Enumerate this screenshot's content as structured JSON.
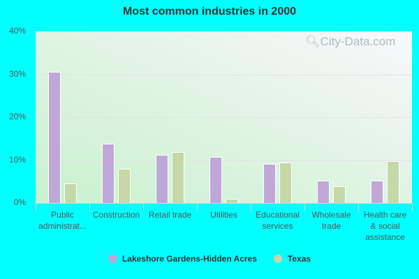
{
  "title": "Most common industries in 2000",
  "watermark": "City-Data.com",
  "colors": {
    "series1": "#bfa8d8",
    "series2": "#c4d8a8",
    "background": "#00ffff"
  },
  "y_ticks": [
    "40%",
    "30%",
    "20%",
    "10%",
    "0%"
  ],
  "legend": [
    {
      "label": "Lakeshore Gardens-Hidden Acres",
      "color": "#bfa8d8"
    },
    {
      "label": "Texas",
      "color": "#c4d8a8"
    }
  ],
  "x_labels": [
    "Public\nadministrat...",
    "Construction",
    "Retail trade",
    "Utilities",
    "Educational\nservices",
    "Wholesale\ntrade",
    "Health care\n& social\nassistance"
  ],
  "chart_data": {
    "type": "bar",
    "title": "Most common industries in 2000",
    "xlabel": "",
    "ylabel": "",
    "ylim": [
      0,
      40
    ],
    "y_ticks": [
      0,
      10,
      20,
      30,
      40
    ],
    "y_tick_format": "%",
    "grid": true,
    "legend_position": "bottom",
    "categories": [
      "Public administrat...",
      "Construction",
      "Retail trade",
      "Utilities",
      "Educational services",
      "Wholesale trade",
      "Health care & social assistance"
    ],
    "series": [
      {
        "name": "Lakeshore Gardens-Hidden Acres",
        "color": "#bfa8d8",
        "values": [
          30.6,
          13.9,
          11.2,
          10.7,
          9.1,
          5.2,
          5.2
        ]
      },
      {
        "name": "Texas",
        "color": "#c4d8a8",
        "values": [
          4.5,
          7.9,
          11.9,
          0.9,
          9.4,
          3.9,
          9.7
        ]
      }
    ]
  }
}
